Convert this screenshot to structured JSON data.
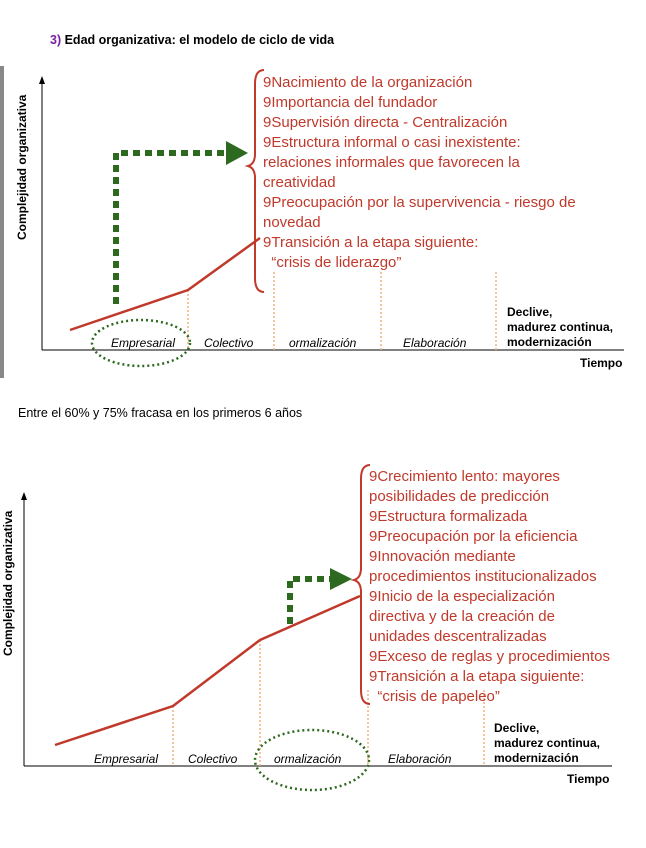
{
  "title": {
    "number": "3)",
    "text": " Edad organizativa: el modelo de ciclo de vida"
  },
  "stat_text": "Entre el 60% y 75% fracasa en los primeros 6 años",
  "bullet_glyph": "9",
  "axes": {
    "y_label": "Complejidad organizativa",
    "x_label": "Tiempo"
  },
  "stages": {
    "empresarial": "Empresarial",
    "colectivo": "Colectivo",
    "formalizacion": "ormalización",
    "elaboracion": "Elaboración",
    "declive_1": "Declive,",
    "declive_2": "madurez continua,",
    "declive_3": "modernización"
  },
  "diagram1": {
    "lines": [
      "Nacimiento de la organización",
      "Importancia del fundador",
      "Supervisión directa - Centralización",
      "Estructura informal o casi inexistente:",
      "relaciones informales que favorecen la",
      "creatividad",
      "Preocupación por la supervivencia - riesgo de",
      "novedad",
      "Transición a la etapa siguiente:",
      "  “crisis de liderazgo”"
    ]
  },
  "diagram2": {
    "lines": [
      "Crecimiento lento: mayores",
      "posibilidades de predicción",
      "Estructura formalizada",
      "Preocupación por la eficiencia",
      "Innovación mediante",
      "procedimientos institucionalizados",
      "Inicio de la especialización",
      "directiva y de la creación de",
      "unidades descentralizadas",
      "Exceso de reglas y procedimientos",
      "Transición a la etapa siguiente:",
      "  “crisis de papeleo”"
    ]
  },
  "colors": {
    "curve": "#c0392b",
    "arrow": "#2d6a1f",
    "divider": "#f0b27a",
    "ellipse": "#2d6a1f",
    "title_number": "#7a1fa2"
  }
}
